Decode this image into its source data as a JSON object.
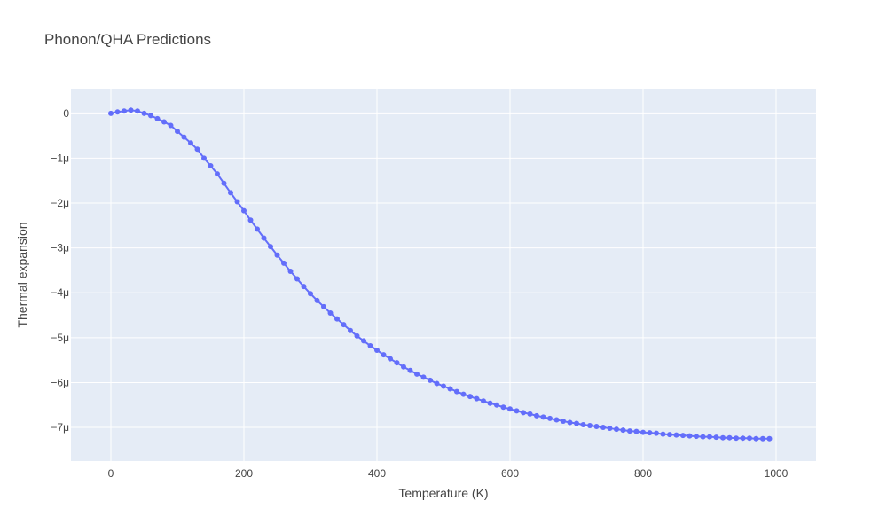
{
  "chart_data": {
    "type": "line",
    "title": "Phonon/QHA Predictions",
    "xlabel": "Temperature (K)",
    "ylabel": "Thermal expansion",
    "xlim": [
      -60,
      1060
    ],
    "ylim": [
      -7.75,
      0.55
    ],
    "y_unit_suffix": "μ",
    "x_ticks": [
      0,
      200,
      400,
      600,
      800,
      1000
    ],
    "y_ticks": [
      0,
      -1,
      -2,
      -3,
      -4,
      -5,
      -6,
      -7
    ],
    "x_tick_labels": [
      "0",
      "200",
      "400",
      "600",
      "800",
      "1000"
    ],
    "y_tick_labels": [
      "0",
      "−1μ",
      "−2μ",
      "−3μ",
      "−4μ",
      "−5μ",
      "−6μ",
      "−7μ"
    ],
    "grid": true,
    "legend": "none",
    "colors": {
      "plot_bg": "#e5ecf6",
      "grid": "#ffffff",
      "series": "#636efa",
      "text": "#444444"
    },
    "series": [
      {
        "x": [
          0,
          10,
          20,
          30,
          40,
          50,
          60,
          70,
          80,
          90,
          100,
          110,
          120,
          130,
          140,
          150,
          160,
          170,
          180,
          190,
          200,
          210,
          220,
          230,
          240,
          250,
          260,
          270,
          280,
          290,
          300,
          310,
          320,
          330,
          340,
          350,
          360,
          370,
          380,
          390,
          400,
          410,
          420,
          430,
          440,
          450,
          460,
          470,
          480,
          490,
          500,
          510,
          520,
          530,
          540,
          550,
          560,
          570,
          580,
          590,
          600,
          610,
          620,
          630,
          640,
          650,
          660,
          670,
          680,
          690,
          700,
          710,
          720,
          730,
          740,
          750,
          760,
          770,
          780,
          790,
          800,
          810,
          820,
          830,
          840,
          850,
          860,
          870,
          880,
          890,
          900,
          910,
          920,
          930,
          940,
          950,
          960,
          970,
          980,
          990
        ],
        "y": [
          0.0,
          0.03,
          0.05,
          0.07,
          0.05,
          0.0,
          -0.05,
          -0.12,
          -0.19,
          -0.27,
          -0.4,
          -0.53,
          -0.66,
          -0.8,
          -1.0,
          -1.17,
          -1.35,
          -1.56,
          -1.77,
          -1.97,
          -2.17,
          -2.38,
          -2.58,
          -2.78,
          -2.97,
          -3.16,
          -3.34,
          -3.52,
          -3.69,
          -3.86,
          -4.02,
          -4.17,
          -4.31,
          -4.45,
          -4.58,
          -4.71,
          -4.84,
          -4.96,
          -5.07,
          -5.18,
          -5.28,
          -5.38,
          -5.47,
          -5.56,
          -5.65,
          -5.73,
          -5.81,
          -5.88,
          -5.95,
          -6.02,
          -6.08,
          -6.14,
          -6.2,
          -6.26,
          -6.31,
          -6.36,
          -6.41,
          -6.46,
          -6.5,
          -6.55,
          -6.59,
          -6.63,
          -6.67,
          -6.7,
          -6.74,
          -6.77,
          -6.8,
          -6.83,
          -6.86,
          -6.89,
          -6.91,
          -6.94,
          -6.96,
          -6.98,
          -7.0,
          -7.02,
          -7.04,
          -7.06,
          -7.08,
          -7.09,
          -7.11,
          -7.12,
          -7.13,
          -7.15,
          -7.16,
          -7.17,
          -7.18,
          -7.19,
          -7.2,
          -7.21,
          -7.21,
          -7.22,
          -7.23,
          -7.23,
          -7.24,
          -7.24,
          -7.24,
          -7.25,
          -7.25,
          -7.25
        ]
      }
    ]
  }
}
